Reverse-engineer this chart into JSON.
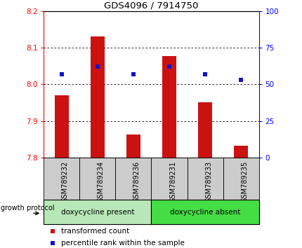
{
  "title": "GDS4096 / 7914750",
  "samples": [
    "GSM789232",
    "GSM789234",
    "GSM789236",
    "GSM789231",
    "GSM789233",
    "GSM789235"
  ],
  "red_values": [
    7.97,
    8.13,
    7.862,
    8.078,
    7.95,
    7.832
  ],
  "blue_values": [
    57,
    62,
    57,
    62,
    57,
    53
  ],
  "ylim_left": [
    7.8,
    8.2
  ],
  "ylim_right": [
    0,
    100
  ],
  "yticks_left": [
    7.8,
    7.9,
    8.0,
    8.1,
    8.2
  ],
  "yticks_right": [
    0,
    25,
    50,
    75,
    100
  ],
  "grid_lines": [
    7.9,
    8.0,
    8.1
  ],
  "bar_color": "#cc1111",
  "dot_color": "#1111cc",
  "bar_bottom": 7.8,
  "group1_label": "doxycycline present",
  "group2_label": "doxycycline absent",
  "group1_count": 3,
  "group2_count": 3,
  "protocol_label": "growth protocol",
  "legend_red": "transformed count",
  "legend_blue": "percentile rank within the sample",
  "group_bg1": "#b8e8b8",
  "group_bg2": "#44dd44",
  "xticklabel_bg": "#cccccc",
  "bar_width": 0.4
}
